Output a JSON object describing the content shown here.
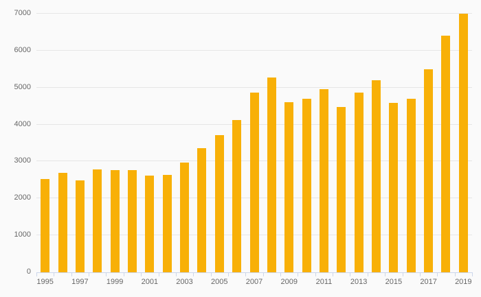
{
  "chart_data": {
    "type": "bar",
    "title": "",
    "categories": [
      "1995",
      "1996",
      "1997",
      "1998",
      "1999",
      "2000",
      "2001",
      "2002",
      "2003",
      "2004",
      "2005",
      "2006",
      "2007",
      "2008",
      "2009",
      "2010",
      "2011",
      "2012",
      "2013",
      "2014",
      "2015",
      "2016",
      "2017",
      "2018",
      "2019"
    ],
    "values": [
      2530,
      2700,
      2490,
      2780,
      2760,
      2760,
      2610,
      2640,
      2980,
      3360,
      3720,
      4130,
      4860,
      5280,
      4610,
      4690,
      4950,
      4480,
      4860,
      5200,
      4580,
      4700,
      5500,
      6400,
      7000
    ],
    "x_tick_labels": [
      "1995",
      "1997",
      "1999",
      "2001",
      "2003",
      "2005",
      "2007",
      "2009",
      "2011",
      "2013",
      "2015",
      "2017",
      "2019"
    ],
    "x_label_every": 2,
    "y_tick_labels": [
      "0",
      "1000",
      "2000",
      "3000",
      "4000",
      "5000",
      "6000",
      "7000"
    ],
    "ylim": [
      0,
      7000
    ],
    "y_tick_interval": 1000,
    "grid": true,
    "legend": "none",
    "colors": {
      "bar": "#f8b007",
      "background": "#fafafa",
      "gridline": "#e6e6e6",
      "axis_line": "#ccd6eb",
      "tick": "#ccd6eb",
      "label_text": "#666666"
    }
  }
}
